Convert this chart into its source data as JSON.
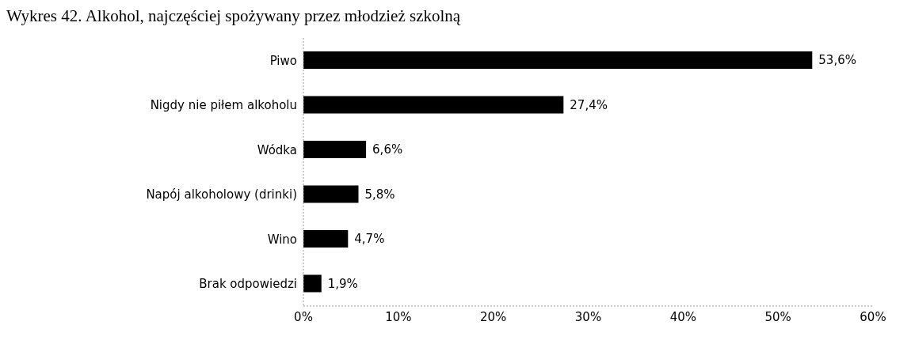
{
  "chart_data": {
    "type": "bar",
    "orientation": "horizontal",
    "title": "Wykres 42. Alkohol, najczęściej spożywany przez młodzież szkolną",
    "categories": [
      "Piwo",
      "Nigdy nie piłem alkoholu",
      "Wódka",
      "Napój alkoholowy (drinki)",
      "Wino",
      "Brak odpowiedzi"
    ],
    "values": [
      53.6,
      27.4,
      6.6,
      5.8,
      4.7,
      1.9
    ],
    "color": "#000000",
    "value_labels": [
      "53,6%",
      "27,4%",
      "6,6%",
      "5,8%",
      "4,7%",
      "1,9%"
    ],
    "xlim": [
      0,
      60
    ],
    "xticks": [
      {
        "value": 0,
        "label": "0%"
      },
      {
        "value": 10,
        "label": "10%"
      },
      {
        "value": 20,
        "label": "20%"
      },
      {
        "value": 30,
        "label": "30%"
      },
      {
        "value": 40,
        "label": "40%"
      },
      {
        "value": 50,
        "label": "50%"
      },
      {
        "value": 60,
        "label": "60%"
      }
    ],
    "grid": false,
    "legend": false
  }
}
